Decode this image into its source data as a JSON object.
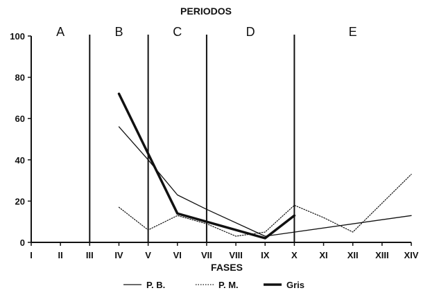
{
  "chart_data": {
    "type": "line",
    "title": "PERIODOS",
    "xlabel": "FASES",
    "ylabel": "",
    "ylim": [
      0,
      100
    ],
    "yticks": [
      "0",
      "20",
      "40",
      "60",
      "80",
      "100"
    ],
    "categories": [
      "I",
      "II",
      "III",
      "IV",
      "V",
      "VI",
      "VII",
      "VIII",
      "IX",
      "X",
      "XI",
      "XII",
      "XIII",
      "XIV"
    ],
    "periods": [
      {
        "label": "A"
      },
      {
        "label": "B"
      },
      {
        "label": "C"
      },
      {
        "label": "D"
      },
      {
        "label": "E"
      }
    ],
    "period_boundaries_after": [
      "III",
      "V",
      "VII",
      "X"
    ],
    "series": [
      {
        "name": "P. B.",
        "style": "thin-solid",
        "points": [
          [
            "IV",
            56
          ],
          [
            "V",
            40
          ],
          [
            "VI",
            23
          ],
          [
            "VII",
            16
          ],
          [
            "IX",
            3
          ],
          [
            "XIV",
            13
          ]
        ]
      },
      {
        "name": "P. M.",
        "style": "dotted",
        "points": [
          [
            "IV",
            17
          ],
          [
            "V",
            6
          ],
          [
            "VI",
            13
          ],
          [
            "VII",
            9
          ],
          [
            "VIII",
            3
          ],
          [
            "IX",
            5
          ],
          [
            "X",
            18
          ],
          [
            "XI",
            12
          ],
          [
            "XII",
            5
          ],
          [
            "XIV",
            33
          ]
        ]
      },
      {
        "name": "Gris",
        "style": "thick-solid",
        "points": [
          [
            "IV",
            72
          ],
          [
            "V",
            43
          ],
          [
            "VI",
            14
          ],
          [
            "VII",
            10
          ],
          [
            "IX",
            2
          ],
          [
            "X",
            13
          ]
        ]
      }
    ],
    "grid": false,
    "legend": "bottom-center",
    "colors": {
      "line": "#111111",
      "background": "#ffffff"
    }
  }
}
